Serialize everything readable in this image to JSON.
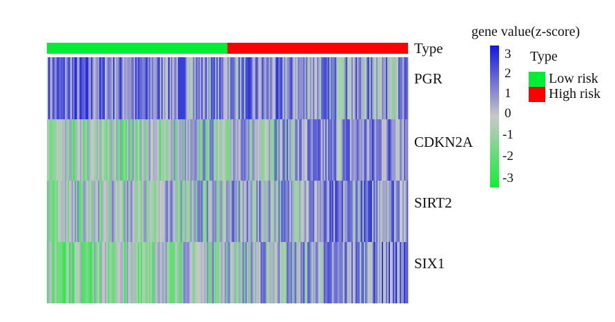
{
  "chart_data": {
    "type": "heatmap",
    "title": "",
    "annotation": {
      "label": "Type",
      "groups": [
        {
          "name": "Low risk",
          "color": "#00ee33",
          "fraction": 0.5
        },
        {
          "name": "High risk",
          "color": "#ff0000",
          "fraction": 0.5
        }
      ]
    },
    "rows": [
      "PGR",
      "CDKN2A",
      "SIRT2",
      "SIX1"
    ],
    "row_trends": [
      {
        "gene": "PGR",
        "low_risk_mean": 1.4,
        "high_risk_mean": 0.6
      },
      {
        "gene": "CDKN2A",
        "low_risk_mean": -1.0,
        "high_risk_mean": 1.3
      },
      {
        "gene": "SIRT2",
        "low_risk_mean": -0.6,
        "high_risk_mean": 1.2
      },
      {
        "gene": "SIX1",
        "low_risk_mean": -1.1,
        "high_risk_mean": 1.2
      }
    ],
    "colorscale": {
      "title": "gene value(z-score)",
      "min": -3,
      "max": 3,
      "low_color": "#11ee33",
      "mid_color": "#c8c8c8",
      "high_color": "#1018e0",
      "ticks": [
        "3",
        "2",
        "1",
        "0",
        "-1",
        "-2",
        "-3"
      ]
    },
    "legend": {
      "title": "Type",
      "items": [
        {
          "label": "Low risk",
          "color": "#00ee33"
        },
        {
          "label": "High risk",
          "color": "#ff0000"
        }
      ],
      "placement": "right"
    }
  }
}
